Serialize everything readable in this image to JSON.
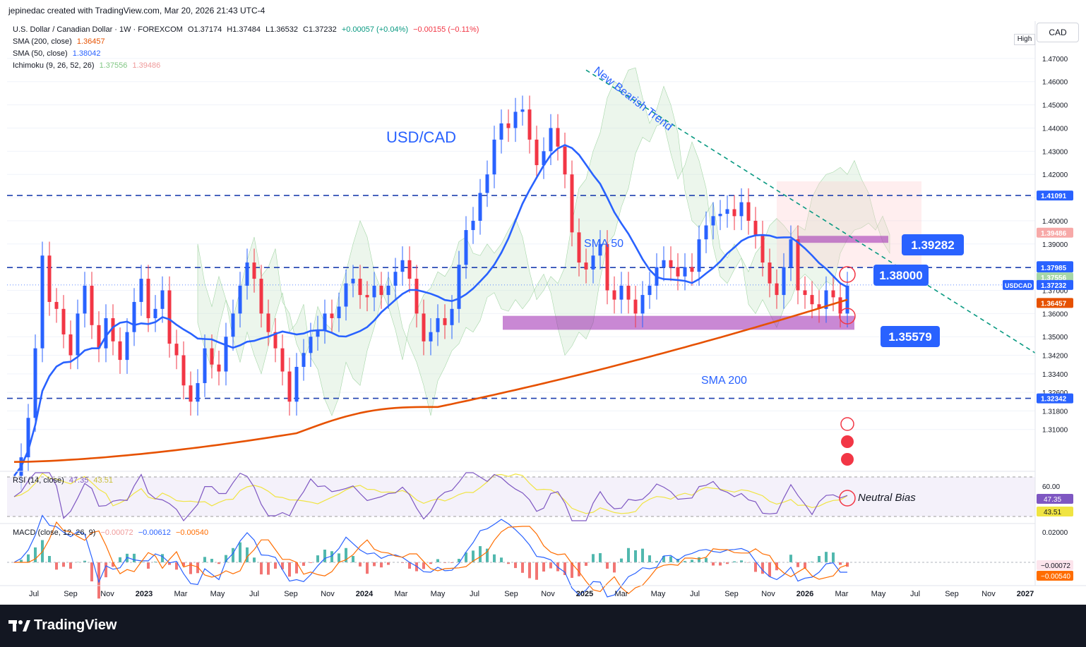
{
  "header": {
    "creator": "jepinedac created with TradingView.com, Mar 20, 2026 21:43 UTC-4"
  },
  "legend": {
    "symbol_line": "U.S. Dollar / Canadian Dollar · 1W · FOREXCOM",
    "o": "O1.37174",
    "h": "H1.37484",
    "l": "L1.36532",
    "c": "C1.37232",
    "chg": "+0.00057 (+0.04%)",
    "chg2": "−0.00155 (−0.11%)",
    "sma200_label": "SMA (200, close)",
    "sma200_val": "1.36457",
    "sma50_label": "SMA (50, close)",
    "sma50_val": "1.38042",
    "ichi_label": "Ichimoku (9, 26, 52, 26)",
    "ichi_a": "1.37556",
    "ichi_b": "1.39486",
    "rsi_label": "RSI (14, close)",
    "rsi_v1": "47.35",
    "rsi_v2": "43.51",
    "macd_label": "MACD (close, 12, 26, 9)",
    "macd_v1": "−0.00072",
    "macd_v2": "−0.00612",
    "macd_v3": "−0.00540"
  },
  "controls": {
    "currency": "CAD",
    "high_label": "High"
  },
  "annotations": {
    "title": "USD/CAD",
    "trend": "New Bearish Trend",
    "sma50": "SMA 50",
    "sma200": "SMA 200",
    "lvl_1": "1.39282",
    "lvl_2": "1.38000",
    "lvl_3": "1.35579",
    "bias": "Neutral Bias"
  },
  "colors": {
    "up": "#2962ff",
    "down": "#f23645",
    "sma50": "#2962ff",
    "sma200": "#e65100",
    "zone": "#9c27b0",
    "label_bg": "#2962ff",
    "rsi": "#7e57c2",
    "rsi_ma": "#f0e442",
    "macd": "#2962ff",
    "signal": "#ff6d00",
    "trend": "#089981"
  },
  "footer": {
    "brand": "TradingView"
  },
  "chart_data": {
    "type": "candlestick",
    "symbol": "USDCAD",
    "timeframe": "1W",
    "ylim": [
      1.295,
      1.48
    ],
    "price_ticks": [
      "1.47000",
      "1.46000",
      "1.45000",
      "1.44000",
      "1.43000",
      "1.42000",
      "1.41000",
      "1.40000",
      "1.39000",
      "1.38000",
      "1.37000",
      "1.36000",
      "1.35000",
      "1.34200",
      "1.33400",
      "1.32600",
      "1.31800",
      "1.31000"
    ],
    "price_labels": [
      {
        "text": "1.41091",
        "value": 1.41091,
        "color": "#2962ff"
      },
      {
        "text": "1.39486",
        "value": 1.39486,
        "color": "#f7a9a8"
      },
      {
        "text": "1.38042",
        "value": 1.38042,
        "color": "#2962ff"
      },
      {
        "text": "1.37985",
        "value": 1.37985,
        "color": "#2962ff"
      },
      {
        "text": "1.37556",
        "value": 1.37556,
        "color": "#a5d6a7"
      },
      {
        "text": "1.37232",
        "value": 1.37232,
        "color": "#2962ff"
      },
      {
        "text": "1.36457",
        "value": 1.36457,
        "color": "#e65100"
      },
      {
        "text": "1.32342",
        "value": 1.32342,
        "color": "#2962ff"
      }
    ],
    "symbol_tag": "USDCAD",
    "time_ticks": [
      "Jul",
      "Sep",
      "Nov",
      "2023",
      "Mar",
      "May",
      "Jul",
      "Sep",
      "Nov",
      "2024",
      "Mar",
      "May",
      "Jul",
      "Sep",
      "Nov",
      "2025",
      "Mar",
      "May",
      "Jul",
      "Sep",
      "Nov",
      "2026",
      "Mar",
      "May",
      "Jul",
      "Sep",
      "Nov",
      "2027"
    ],
    "horizontal_levels": [
      1.41091,
      1.37985,
      1.32342
    ],
    "zones": [
      {
        "name": "support",
        "low": 1.353,
        "high": 1.359
      },
      {
        "name": "resistance",
        "low": 1.3905,
        "high": 1.3935
      }
    ],
    "trendline": {
      "start": [
        1.465
      ],
      "end": [
        1.343
      ]
    },
    "rsi_ticks": [
      "60.00"
    ],
    "rsi_labels": [
      "47.35",
      "43.51"
    ],
    "macd_ticks": [
      "0.02000"
    ],
    "macd_labels": [
      "−0.00072",
      "−0.00540"
    ],
    "closes_sample": [
      1.29,
      1.298,
      1.315,
      1.345,
      1.385,
      1.365,
      1.362,
      1.351,
      1.342,
      1.36,
      1.372,
      1.355,
      1.345,
      1.358,
      1.348,
      1.34,
      1.352,
      1.365,
      1.375,
      1.358,
      1.362,
      1.37,
      1.347,
      1.342,
      1.329,
      1.322,
      1.33,
      1.345,
      1.338,
      1.335,
      1.35,
      1.36,
      1.372,
      1.382,
      1.375,
      1.36,
      1.352,
      1.345,
      1.335,
      1.322,
      1.337,
      1.343,
      1.35,
      1.353,
      1.36,
      1.358,
      1.363,
      1.373,
      1.375,
      1.368,
      1.367,
      1.372,
      1.368,
      1.372,
      1.378,
      1.383,
      1.375,
      1.36,
      1.348,
      1.352,
      1.358,
      1.355,
      1.362,
      1.381,
      1.396,
      1.4,
      1.412,
      1.42,
      1.435,
      1.442,
      1.44,
      1.447,
      1.448,
      1.435,
      1.424,
      1.43,
      1.44,
      1.432,
      1.42,
      1.395,
      1.382,
      1.379,
      1.385,
      1.39,
      1.37,
      1.366,
      1.372,
      1.366,
      1.36,
      1.368,
      1.372,
      1.38,
      1.383,
      1.38,
      1.376,
      1.38,
      1.378,
      1.392,
      1.398,
      1.402,
      1.403,
      1.405,
      1.402,
      1.408,
      1.4,
      1.394,
      1.382,
      1.373,
      1.368,
      1.38,
      1.392,
      1.37,
      1.368,
      1.364,
      1.362,
      1.37,
      1.367,
      1.36,
      1.372
    ]
  }
}
